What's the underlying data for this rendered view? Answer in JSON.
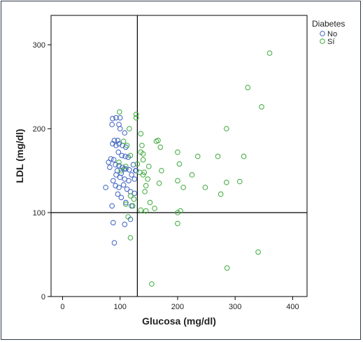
{
  "chart_data": {
    "type": "scatter",
    "xlabel": "Glucosa (mg/dl)",
    "ylabel": "LDL (mg/dl)",
    "xlim": [
      -20,
      425
    ],
    "ylim": [
      0,
      335
    ],
    "xticks": [
      0,
      100,
      200,
      300,
      400
    ],
    "yticks": [
      0,
      100,
      200,
      300
    ],
    "xtick_labels": [
      "0",
      "100",
      "200",
      "300",
      "400"
    ],
    "ytick_labels": [
      "0",
      "100",
      "200",
      "300"
    ],
    "reference_lines": {
      "x": 130,
      "y": 100
    },
    "grid": false,
    "legend": {
      "title": "Diabetes",
      "position": "top-right"
    },
    "series": [
      {
        "name": "No",
        "color": "#3b5fc0",
        "points": [
          [
            87,
            212
          ],
          [
            93,
            213
          ],
          [
            100,
            213
          ],
          [
            86,
            205
          ],
          [
            98,
            205
          ],
          [
            108,
            195
          ],
          [
            100,
            200
          ],
          [
            90,
            186
          ],
          [
            96,
            186
          ],
          [
            98,
            182
          ],
          [
            87,
            182
          ],
          [
            93,
            180
          ],
          [
            104,
            180
          ],
          [
            110,
            178
          ],
          [
            97,
            172
          ],
          [
            103,
            168
          ],
          [
            109,
            167
          ],
          [
            114,
            166
          ],
          [
            84,
            164
          ],
          [
            89,
            163
          ],
          [
            80,
            160
          ],
          [
            92,
            157
          ],
          [
            98,
            156
          ],
          [
            104,
            154
          ],
          [
            110,
            152
          ],
          [
            116,
            151
          ],
          [
            123,
            157
          ],
          [
            127,
            150
          ],
          [
            82,
            154
          ],
          [
            95,
            150
          ],
          [
            102,
            147
          ],
          [
            107,
            152
          ],
          [
            93,
            145
          ],
          [
            120,
            145
          ],
          [
            100,
            142
          ],
          [
            108,
            140
          ],
          [
            115,
            138
          ],
          [
            88,
            138
          ],
          [
            92,
            132
          ],
          [
            98,
            130
          ],
          [
            106,
            133
          ],
          [
            75,
            130
          ],
          [
            112,
            128
          ],
          [
            118,
            125
          ],
          [
            125,
            123
          ],
          [
            96,
            122
          ],
          [
            102,
            118
          ],
          [
            86,
            108
          ],
          [
            110,
            112
          ],
          [
            120,
            108
          ],
          [
            88,
            88
          ],
          [
            108,
            86
          ],
          [
            118,
            92
          ],
          [
            90,
            64
          ],
          [
            128,
            150
          ],
          [
            125,
            140
          ]
        ]
      },
      {
        "name": "Sí",
        "color": "#3aa83a",
        "points": [
          [
            360,
            290
          ],
          [
            322,
            249
          ],
          [
            346,
            226
          ],
          [
            285,
            200
          ],
          [
            99,
            220
          ],
          [
            128,
            217
          ],
          [
            128,
            213
          ],
          [
            116,
            200
          ],
          [
            106,
            185
          ],
          [
            112,
            180
          ],
          [
            136,
            194
          ],
          [
            163,
            185
          ],
          [
            166,
            186
          ],
          [
            138,
            180
          ],
          [
            170,
            178
          ],
          [
            140,
            170
          ],
          [
            136,
            172
          ],
          [
            118,
            168
          ],
          [
            200,
            172
          ],
          [
            235,
            167
          ],
          [
            270,
            167
          ],
          [
            315,
            167
          ],
          [
            140,
            163
          ],
          [
            98,
            160
          ],
          [
            130,
            158
          ],
          [
            203,
            158
          ],
          [
            102,
            150
          ],
          [
            110,
            155
          ],
          [
            150,
            155
          ],
          [
            172,
            150
          ],
          [
            134,
            148
          ],
          [
            140,
            145
          ],
          [
            225,
            145
          ],
          [
            148,
            140
          ],
          [
            200,
            138
          ],
          [
            168,
            135
          ],
          [
            145,
            132
          ],
          [
            285,
            136
          ],
          [
            308,
            137
          ],
          [
            210,
            130
          ],
          [
            248,
            130
          ],
          [
            275,
            122
          ],
          [
            143,
            125
          ],
          [
            118,
            120
          ],
          [
            124,
            116
          ],
          [
            110,
            110
          ],
          [
            122,
            108
          ],
          [
            136,
            103
          ],
          [
            145,
            102
          ],
          [
            200,
            100
          ],
          [
            205,
            102
          ],
          [
            160,
            105
          ],
          [
            114,
            95
          ],
          [
            118,
            70
          ],
          [
            200,
            87
          ],
          [
            340,
            53
          ],
          [
            286,
            34
          ],
          [
            155,
            15
          ],
          [
            142,
            148
          ],
          [
            152,
            112
          ]
        ]
      }
    ]
  },
  "colors": {
    "frame": "#2f3a4a",
    "axis": "#000000",
    "no_series": "#3b5fc0",
    "si_series": "#3aa83a"
  }
}
